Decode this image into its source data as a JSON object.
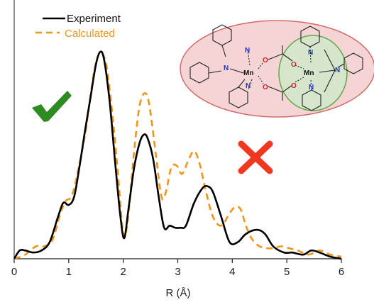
{
  "chart_data": {
    "type": "line",
    "xlabel": "R (Å)",
    "ylabel": "",
    "xlim": [
      0,
      6
    ],
    "ylim": [
      0,
      1.0
    ],
    "xticks": [
      "0",
      "1",
      "2",
      "3",
      "4",
      "5",
      "6"
    ],
    "grid": false,
    "legend_position": "top-left",
    "series": [
      {
        "name": "Experiment",
        "color": "#000000",
        "style": "solid",
        "points": [
          [
            0.0,
            0.0
          ],
          [
            0.1,
            0.04
          ],
          [
            0.2,
            0.04
          ],
          [
            0.35,
            0.03
          ],
          [
            0.5,
            0.04
          ],
          [
            0.65,
            0.08
          ],
          [
            0.8,
            0.2
          ],
          [
            0.9,
            0.27
          ],
          [
            1.0,
            0.26
          ],
          [
            1.1,
            0.3
          ],
          [
            1.2,
            0.45
          ],
          [
            1.3,
            0.62
          ],
          [
            1.4,
            0.78
          ],
          [
            1.5,
            0.94
          ],
          [
            1.58,
            1.0
          ],
          [
            1.65,
            0.96
          ],
          [
            1.75,
            0.76
          ],
          [
            1.85,
            0.47
          ],
          [
            1.95,
            0.2
          ],
          [
            2.02,
            0.1
          ],
          [
            2.1,
            0.25
          ],
          [
            2.2,
            0.44
          ],
          [
            2.3,
            0.56
          ],
          [
            2.38,
            0.6
          ],
          [
            2.45,
            0.58
          ],
          [
            2.55,
            0.48
          ],
          [
            2.65,
            0.3
          ],
          [
            2.75,
            0.15
          ],
          [
            2.85,
            0.16
          ],
          [
            2.95,
            0.15
          ],
          [
            3.05,
            0.15
          ],
          [
            3.15,
            0.16
          ],
          [
            3.3,
            0.27
          ],
          [
            3.45,
            0.34
          ],
          [
            3.55,
            0.35
          ],
          [
            3.65,
            0.32
          ],
          [
            3.8,
            0.2
          ],
          [
            3.95,
            0.08
          ],
          [
            4.1,
            0.08
          ],
          [
            4.25,
            0.12
          ],
          [
            4.45,
            0.14
          ],
          [
            4.6,
            0.12
          ],
          [
            4.75,
            0.06
          ],
          [
            4.95,
            0.03
          ],
          [
            5.1,
            0.03
          ],
          [
            5.3,
            0.02
          ],
          [
            5.45,
            0.04
          ],
          [
            5.6,
            0.03
          ],
          [
            5.8,
            0.01
          ],
          [
            6.0,
            0.0
          ]
        ]
      },
      {
        "name": "Calculated",
        "color": "#F0951A",
        "style": "dashed",
        "points": [
          [
            0.0,
            0.0
          ],
          [
            0.2,
            0.02
          ],
          [
            0.4,
            0.06
          ],
          [
            0.55,
            0.06
          ],
          [
            0.7,
            0.09
          ],
          [
            0.85,
            0.22
          ],
          [
            0.95,
            0.28
          ],
          [
            1.05,
            0.3
          ],
          [
            1.15,
            0.4
          ],
          [
            1.3,
            0.6
          ],
          [
            1.45,
            0.88
          ],
          [
            1.55,
            0.99
          ],
          [
            1.62,
            0.99
          ],
          [
            1.7,
            0.92
          ],
          [
            1.8,
            0.7
          ],
          [
            1.9,
            0.42
          ],
          [
            2.0,
            0.12
          ],
          [
            2.08,
            0.18
          ],
          [
            2.2,
            0.52
          ],
          [
            2.3,
            0.74
          ],
          [
            2.4,
            0.8
          ],
          [
            2.48,
            0.74
          ],
          [
            2.6,
            0.5
          ],
          [
            2.7,
            0.3
          ],
          [
            2.78,
            0.32
          ],
          [
            2.88,
            0.44
          ],
          [
            2.98,
            0.45
          ],
          [
            3.08,
            0.41
          ],
          [
            3.2,
            0.48
          ],
          [
            3.3,
            0.52
          ],
          [
            3.4,
            0.46
          ],
          [
            3.52,
            0.32
          ],
          [
            3.65,
            0.2
          ],
          [
            3.8,
            0.16
          ],
          [
            3.95,
            0.22
          ],
          [
            4.05,
            0.25
          ],
          [
            4.15,
            0.24
          ],
          [
            4.25,
            0.16
          ],
          [
            4.35,
            0.1
          ],
          [
            4.5,
            0.06
          ],
          [
            4.7,
            0.05
          ],
          [
            4.9,
            0.06
          ],
          [
            5.05,
            0.05
          ],
          [
            5.2,
            0.04
          ],
          [
            5.4,
            0.02
          ],
          [
            5.6,
            0.04
          ],
          [
            5.8,
            0.02
          ],
          [
            6.0,
            0.01
          ]
        ]
      }
    ]
  },
  "annotations": {
    "check_color": "#2E8B22",
    "cross_color": "#F03820",
    "inset_fill": "#F4D4D4",
    "inset_stroke": "#D46A6A",
    "inset_ring_fill": "#D6E6CC",
    "inset_ring_stroke": "#66A64A",
    "metal_left": "Mn",
    "metal_right": "Mn",
    "n_label": "N",
    "o_label": "O"
  }
}
